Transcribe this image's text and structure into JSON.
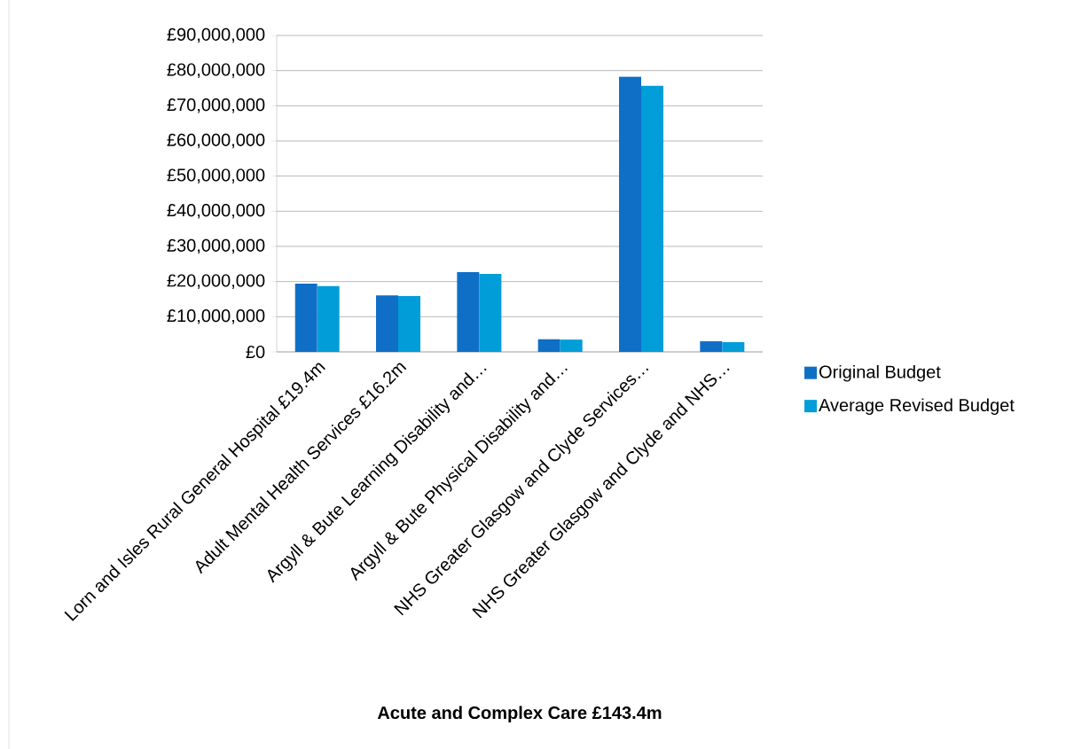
{
  "chart_data": {
    "type": "bar",
    "xlabel": "Acute and Complex Care £143.4m",
    "categories": [
      "Lorn and Isles Rural General Hospital £19.4m",
      "Adult Mental Health Services £16.2m",
      "Argyll & Bute Learning Disability and…",
      "Argyll & Bute  Physical Disability and…",
      "NHS Greater Glasgow and Clyde Services…",
      "NHS Greater Glasgow and Clyde and NHS…"
    ],
    "series": [
      {
        "name": "Original Budget",
        "color": "#0f6fc6",
        "values": [
          19400000,
          16100000,
          22700000,
          3600000,
          78300000,
          3000000
        ]
      },
      {
        "name": "Average Revised Budget",
        "color": "#009dd9",
        "values": [
          18700000,
          15900000,
          22200000,
          3500000,
          75700000,
          2800000
        ]
      }
    ],
    "ylim": [
      0,
      90000000
    ],
    "yticks": [
      {
        "value": 0,
        "label": "£0"
      },
      {
        "value": 10000000,
        "label": "£10,000,000"
      },
      {
        "value": 20000000,
        "label": "£20,000,000"
      },
      {
        "value": 30000000,
        "label": "£30,000,000"
      },
      {
        "value": 40000000,
        "label": "£40,000,000"
      },
      {
        "value": 50000000,
        "label": "£50,000,000"
      },
      {
        "value": 60000000,
        "label": "£60,000,000"
      },
      {
        "value": 70000000,
        "label": "£70,000,000"
      },
      {
        "value": 80000000,
        "label": "£80,000,000"
      },
      {
        "value": 90000000,
        "label": "£90,000,000"
      }
    ],
    "grid": "y",
    "legend": "right"
  }
}
